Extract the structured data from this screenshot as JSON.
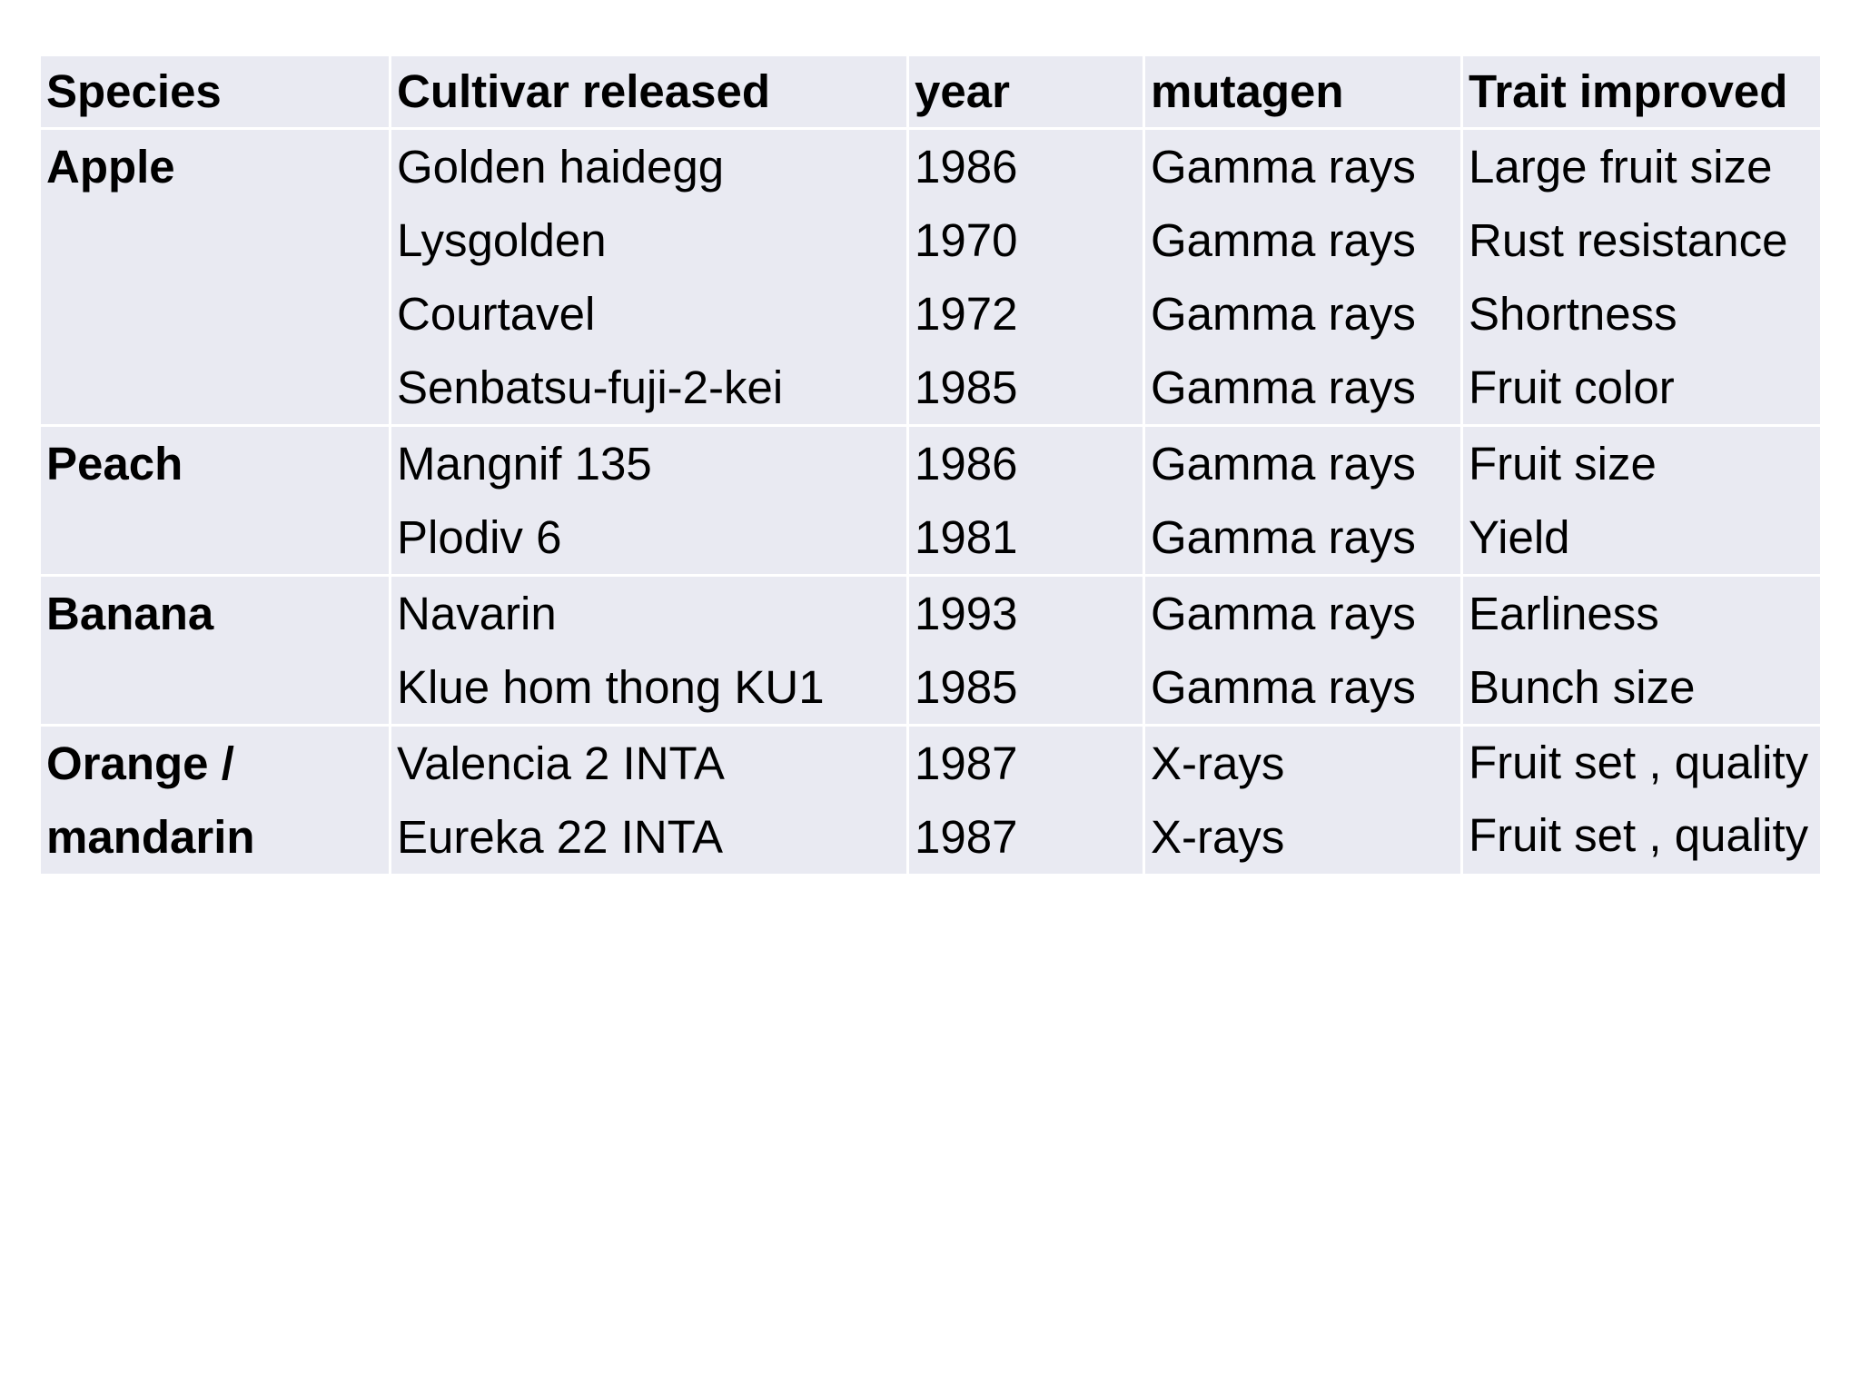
{
  "table": {
    "headers": [
      "Species",
      "Cultivar released",
      "year",
      "mutagen",
      "Trait improved"
    ],
    "groups": [
      {
        "species": "Apple",
        "cultivars": [
          "Golden haidegg",
          "Lysgolden",
          "Courtavel",
          "Senbatsu-fuji-2-kei"
        ],
        "years": [
          "1986",
          "1970",
          "1972",
          "1985"
        ],
        "mutagens": [
          "Gamma rays",
          "Gamma rays",
          "Gamma rays",
          "Gamma rays"
        ],
        "traits": [
          "Large fruit size",
          "Rust resistance",
          "Shortness",
          "Fruit color"
        ]
      },
      {
        "species": "Peach",
        "cultivars": [
          "Mangnif 135",
          "Plodiv 6"
        ],
        "years": [
          "1986",
          "1981"
        ],
        "mutagens": [
          "Gamma rays",
          "Gamma rays"
        ],
        "traits": [
          "Fruit size",
          "Yield"
        ]
      },
      {
        "species": "Banana",
        "cultivars": [
          "Navarin",
          "Klue hom thong KU1"
        ],
        "years": [
          "1993",
          "1985"
        ],
        "mutagens": [
          "Gamma rays",
          "Gamma rays"
        ],
        "traits": [
          "Earliness",
          "Bunch size"
        ]
      },
      {
        "species": "Orange / mandarin",
        "cultivars": [
          "Valencia 2 INTA",
          "Eureka 22 INTA"
        ],
        "years": [
          "1987",
          "1987"
        ],
        "mutagens": [
          "X-rays",
          "X-rays"
        ],
        "traits": [
          "Fruit set , quality",
          "Fruit set , quality"
        ]
      }
    ]
  }
}
